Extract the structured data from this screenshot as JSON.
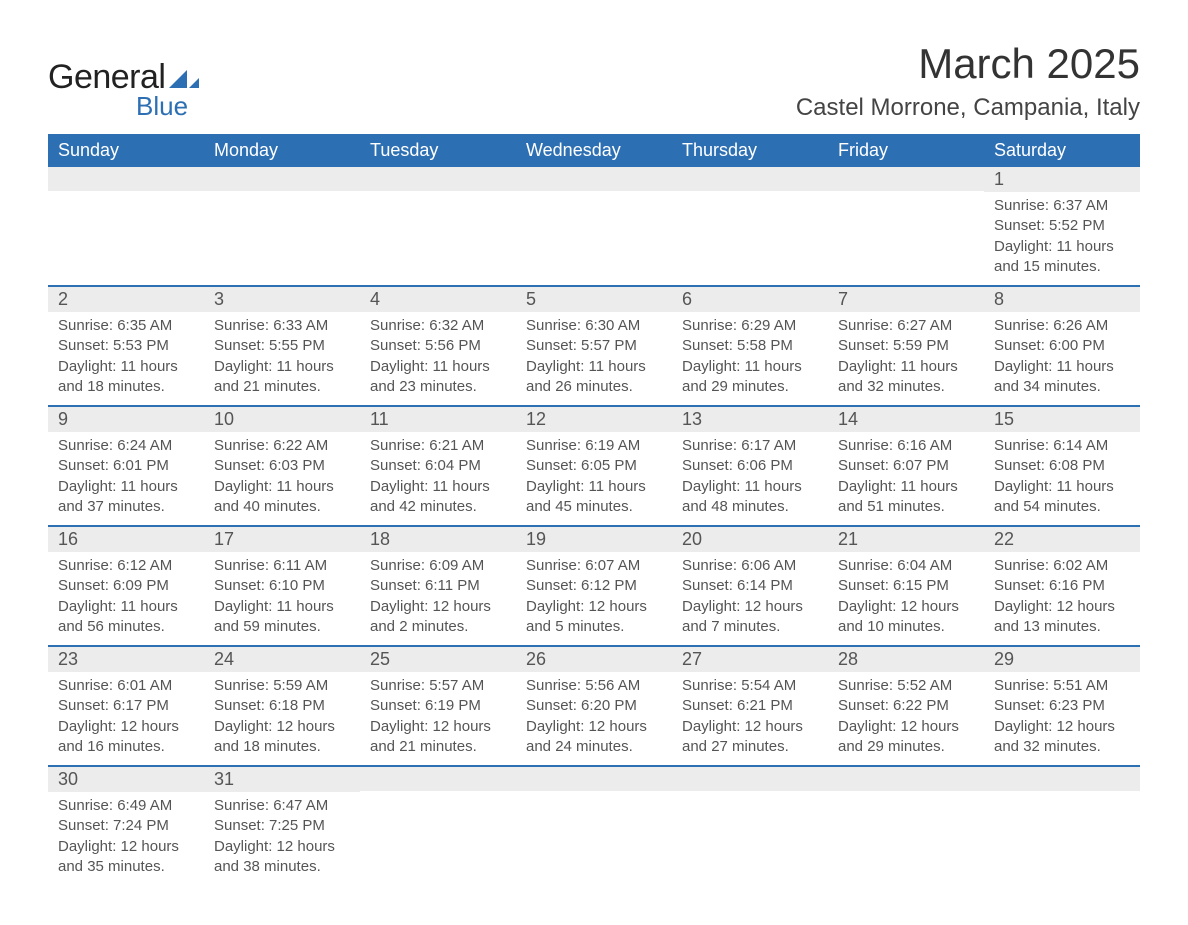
{
  "brand": {
    "word1": "General",
    "word2": "Blue",
    "shape_color": "#2d6fb3",
    "text_color": "#222222"
  },
  "title": "March 2025",
  "location": "Castel Morrone, Campania, Italy",
  "colors": {
    "header_bg": "#2d6fb3",
    "header_text": "#ffffff",
    "daynum_bg": "#ececec",
    "divider": "#2d6fb3",
    "body_text": "#555555"
  },
  "typography": {
    "title_fontsize": 42,
    "location_fontsize": 24,
    "weekday_fontsize": 18,
    "daynum_fontsize": 18,
    "body_fontsize": 15
  },
  "layout": {
    "columns": 7,
    "rows": 6,
    "aspect_ratio": "1188x918"
  },
  "weekdays": [
    "Sunday",
    "Monday",
    "Tuesday",
    "Wednesday",
    "Thursday",
    "Friday",
    "Saturday"
  ],
  "weeks": [
    [
      {
        "blank": true
      },
      {
        "blank": true
      },
      {
        "blank": true
      },
      {
        "blank": true
      },
      {
        "blank": true
      },
      {
        "blank": true
      },
      {
        "day": "1",
        "sunrise": "Sunrise: 6:37 AM",
        "sunset": "Sunset: 5:52 PM",
        "daylight1": "Daylight: 11 hours",
        "daylight2": "and 15 minutes."
      }
    ],
    [
      {
        "day": "2",
        "sunrise": "Sunrise: 6:35 AM",
        "sunset": "Sunset: 5:53 PM",
        "daylight1": "Daylight: 11 hours",
        "daylight2": "and 18 minutes."
      },
      {
        "day": "3",
        "sunrise": "Sunrise: 6:33 AM",
        "sunset": "Sunset: 5:55 PM",
        "daylight1": "Daylight: 11 hours",
        "daylight2": "and 21 minutes."
      },
      {
        "day": "4",
        "sunrise": "Sunrise: 6:32 AM",
        "sunset": "Sunset: 5:56 PM",
        "daylight1": "Daylight: 11 hours",
        "daylight2": "and 23 minutes."
      },
      {
        "day": "5",
        "sunrise": "Sunrise: 6:30 AM",
        "sunset": "Sunset: 5:57 PM",
        "daylight1": "Daylight: 11 hours",
        "daylight2": "and 26 minutes."
      },
      {
        "day": "6",
        "sunrise": "Sunrise: 6:29 AM",
        "sunset": "Sunset: 5:58 PM",
        "daylight1": "Daylight: 11 hours",
        "daylight2": "and 29 minutes."
      },
      {
        "day": "7",
        "sunrise": "Sunrise: 6:27 AM",
        "sunset": "Sunset: 5:59 PM",
        "daylight1": "Daylight: 11 hours",
        "daylight2": "and 32 minutes."
      },
      {
        "day": "8",
        "sunrise": "Sunrise: 6:26 AM",
        "sunset": "Sunset: 6:00 PM",
        "daylight1": "Daylight: 11 hours",
        "daylight2": "and 34 minutes."
      }
    ],
    [
      {
        "day": "9",
        "sunrise": "Sunrise: 6:24 AM",
        "sunset": "Sunset: 6:01 PM",
        "daylight1": "Daylight: 11 hours",
        "daylight2": "and 37 minutes."
      },
      {
        "day": "10",
        "sunrise": "Sunrise: 6:22 AM",
        "sunset": "Sunset: 6:03 PM",
        "daylight1": "Daylight: 11 hours",
        "daylight2": "and 40 minutes."
      },
      {
        "day": "11",
        "sunrise": "Sunrise: 6:21 AM",
        "sunset": "Sunset: 6:04 PM",
        "daylight1": "Daylight: 11 hours",
        "daylight2": "and 42 minutes."
      },
      {
        "day": "12",
        "sunrise": "Sunrise: 6:19 AM",
        "sunset": "Sunset: 6:05 PM",
        "daylight1": "Daylight: 11 hours",
        "daylight2": "and 45 minutes."
      },
      {
        "day": "13",
        "sunrise": "Sunrise: 6:17 AM",
        "sunset": "Sunset: 6:06 PM",
        "daylight1": "Daylight: 11 hours",
        "daylight2": "and 48 minutes."
      },
      {
        "day": "14",
        "sunrise": "Sunrise: 6:16 AM",
        "sunset": "Sunset: 6:07 PM",
        "daylight1": "Daylight: 11 hours",
        "daylight2": "and 51 minutes."
      },
      {
        "day": "15",
        "sunrise": "Sunrise: 6:14 AM",
        "sunset": "Sunset: 6:08 PM",
        "daylight1": "Daylight: 11 hours",
        "daylight2": "and 54 minutes."
      }
    ],
    [
      {
        "day": "16",
        "sunrise": "Sunrise: 6:12 AM",
        "sunset": "Sunset: 6:09 PM",
        "daylight1": "Daylight: 11 hours",
        "daylight2": "and 56 minutes."
      },
      {
        "day": "17",
        "sunrise": "Sunrise: 6:11 AM",
        "sunset": "Sunset: 6:10 PM",
        "daylight1": "Daylight: 11 hours",
        "daylight2": "and 59 minutes."
      },
      {
        "day": "18",
        "sunrise": "Sunrise: 6:09 AM",
        "sunset": "Sunset: 6:11 PM",
        "daylight1": "Daylight: 12 hours",
        "daylight2": "and 2 minutes."
      },
      {
        "day": "19",
        "sunrise": "Sunrise: 6:07 AM",
        "sunset": "Sunset: 6:12 PM",
        "daylight1": "Daylight: 12 hours",
        "daylight2": "and 5 minutes."
      },
      {
        "day": "20",
        "sunrise": "Sunrise: 6:06 AM",
        "sunset": "Sunset: 6:14 PM",
        "daylight1": "Daylight: 12 hours",
        "daylight2": "and 7 minutes."
      },
      {
        "day": "21",
        "sunrise": "Sunrise: 6:04 AM",
        "sunset": "Sunset: 6:15 PM",
        "daylight1": "Daylight: 12 hours",
        "daylight2": "and 10 minutes."
      },
      {
        "day": "22",
        "sunrise": "Sunrise: 6:02 AM",
        "sunset": "Sunset: 6:16 PM",
        "daylight1": "Daylight: 12 hours",
        "daylight2": "and 13 minutes."
      }
    ],
    [
      {
        "day": "23",
        "sunrise": "Sunrise: 6:01 AM",
        "sunset": "Sunset: 6:17 PM",
        "daylight1": "Daylight: 12 hours",
        "daylight2": "and 16 minutes."
      },
      {
        "day": "24",
        "sunrise": "Sunrise: 5:59 AM",
        "sunset": "Sunset: 6:18 PM",
        "daylight1": "Daylight: 12 hours",
        "daylight2": "and 18 minutes."
      },
      {
        "day": "25",
        "sunrise": "Sunrise: 5:57 AM",
        "sunset": "Sunset: 6:19 PM",
        "daylight1": "Daylight: 12 hours",
        "daylight2": "and 21 minutes."
      },
      {
        "day": "26",
        "sunrise": "Sunrise: 5:56 AM",
        "sunset": "Sunset: 6:20 PM",
        "daylight1": "Daylight: 12 hours",
        "daylight2": "and 24 minutes."
      },
      {
        "day": "27",
        "sunrise": "Sunrise: 5:54 AM",
        "sunset": "Sunset: 6:21 PM",
        "daylight1": "Daylight: 12 hours",
        "daylight2": "and 27 minutes."
      },
      {
        "day": "28",
        "sunrise": "Sunrise: 5:52 AM",
        "sunset": "Sunset: 6:22 PM",
        "daylight1": "Daylight: 12 hours",
        "daylight2": "and 29 minutes."
      },
      {
        "day": "29",
        "sunrise": "Sunrise: 5:51 AM",
        "sunset": "Sunset: 6:23 PM",
        "daylight1": "Daylight: 12 hours",
        "daylight2": "and 32 minutes."
      }
    ],
    [
      {
        "day": "30",
        "sunrise": "Sunrise: 6:49 AM",
        "sunset": "Sunset: 7:24 PM",
        "daylight1": "Daylight: 12 hours",
        "daylight2": "and 35 minutes."
      },
      {
        "day": "31",
        "sunrise": "Sunrise: 6:47 AM",
        "sunset": "Sunset: 7:25 PM",
        "daylight1": "Daylight: 12 hours",
        "daylight2": "and 38 minutes."
      },
      {
        "blank": true
      },
      {
        "blank": true
      },
      {
        "blank": true
      },
      {
        "blank": true
      },
      {
        "blank": true
      }
    ]
  ]
}
